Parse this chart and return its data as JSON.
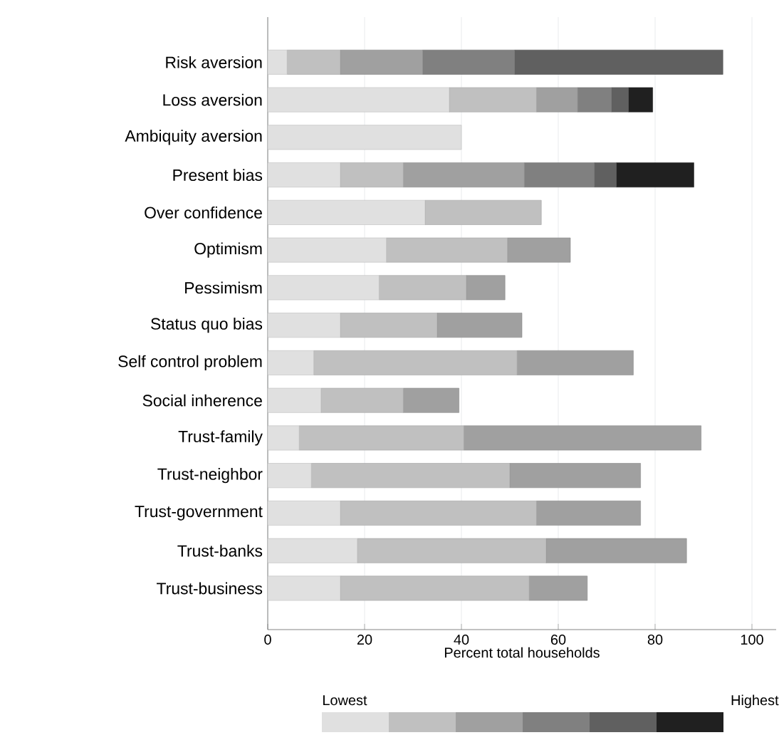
{
  "chart_data": {
    "type": "bar",
    "orientation": "horizontal",
    "stacked": true,
    "xlabel": "Percent total households",
    "categories": [
      "Risk aversion",
      "Loss aversion",
      "Ambiquity aversion",
      "Present bias",
      "Over confidence",
      "Optimism",
      "Pessimism",
      "Status quo bias",
      "Self control problem",
      "Social inherence",
      "Trust-family",
      "Trust-neighbor",
      "Trust-government",
      "Trust-banks",
      "Trust-business"
    ],
    "series": [
      {
        "color": "#e0e0e0",
        "values": [
          4,
          37.5,
          40,
          15,
          32.5,
          24.5,
          23,
          15,
          9.5,
          11,
          6.5,
          9,
          15,
          18.5,
          15
        ]
      },
      {
        "color": "#c0c0c0",
        "values": [
          11,
          18,
          null,
          13,
          24,
          25,
          18,
          20,
          42,
          17,
          34,
          41,
          40.5,
          39,
          39
        ]
      },
      {
        "color": "#a0a0a0",
        "values": [
          17,
          8.5,
          null,
          25,
          null,
          13,
          8,
          17.5,
          24,
          11.5,
          49,
          27,
          21.5,
          29,
          12
        ]
      },
      {
        "color": "#808080",
        "values": [
          19,
          7,
          null,
          14.5,
          null,
          null,
          null,
          null,
          null,
          null,
          null,
          null,
          null,
          null,
          null
        ]
      },
      {
        "color": "#606060",
        "values": [
          43,
          3.5,
          null,
          4.5,
          null,
          null,
          null,
          null,
          null,
          null,
          null,
          null,
          null,
          null,
          null
        ]
      },
      {
        "color": "#202020",
        "values": [
          null,
          5,
          null,
          16,
          null,
          null,
          null,
          null,
          null,
          null,
          null,
          null,
          null,
          null,
          null
        ]
      }
    ],
    "xlim": [
      0,
      105
    ],
    "xticks": [
      0,
      20,
      40,
      60,
      80,
      100
    ],
    "grid": "x",
    "annotations": [
      "Lowest",
      "Highest"
    ]
  }
}
